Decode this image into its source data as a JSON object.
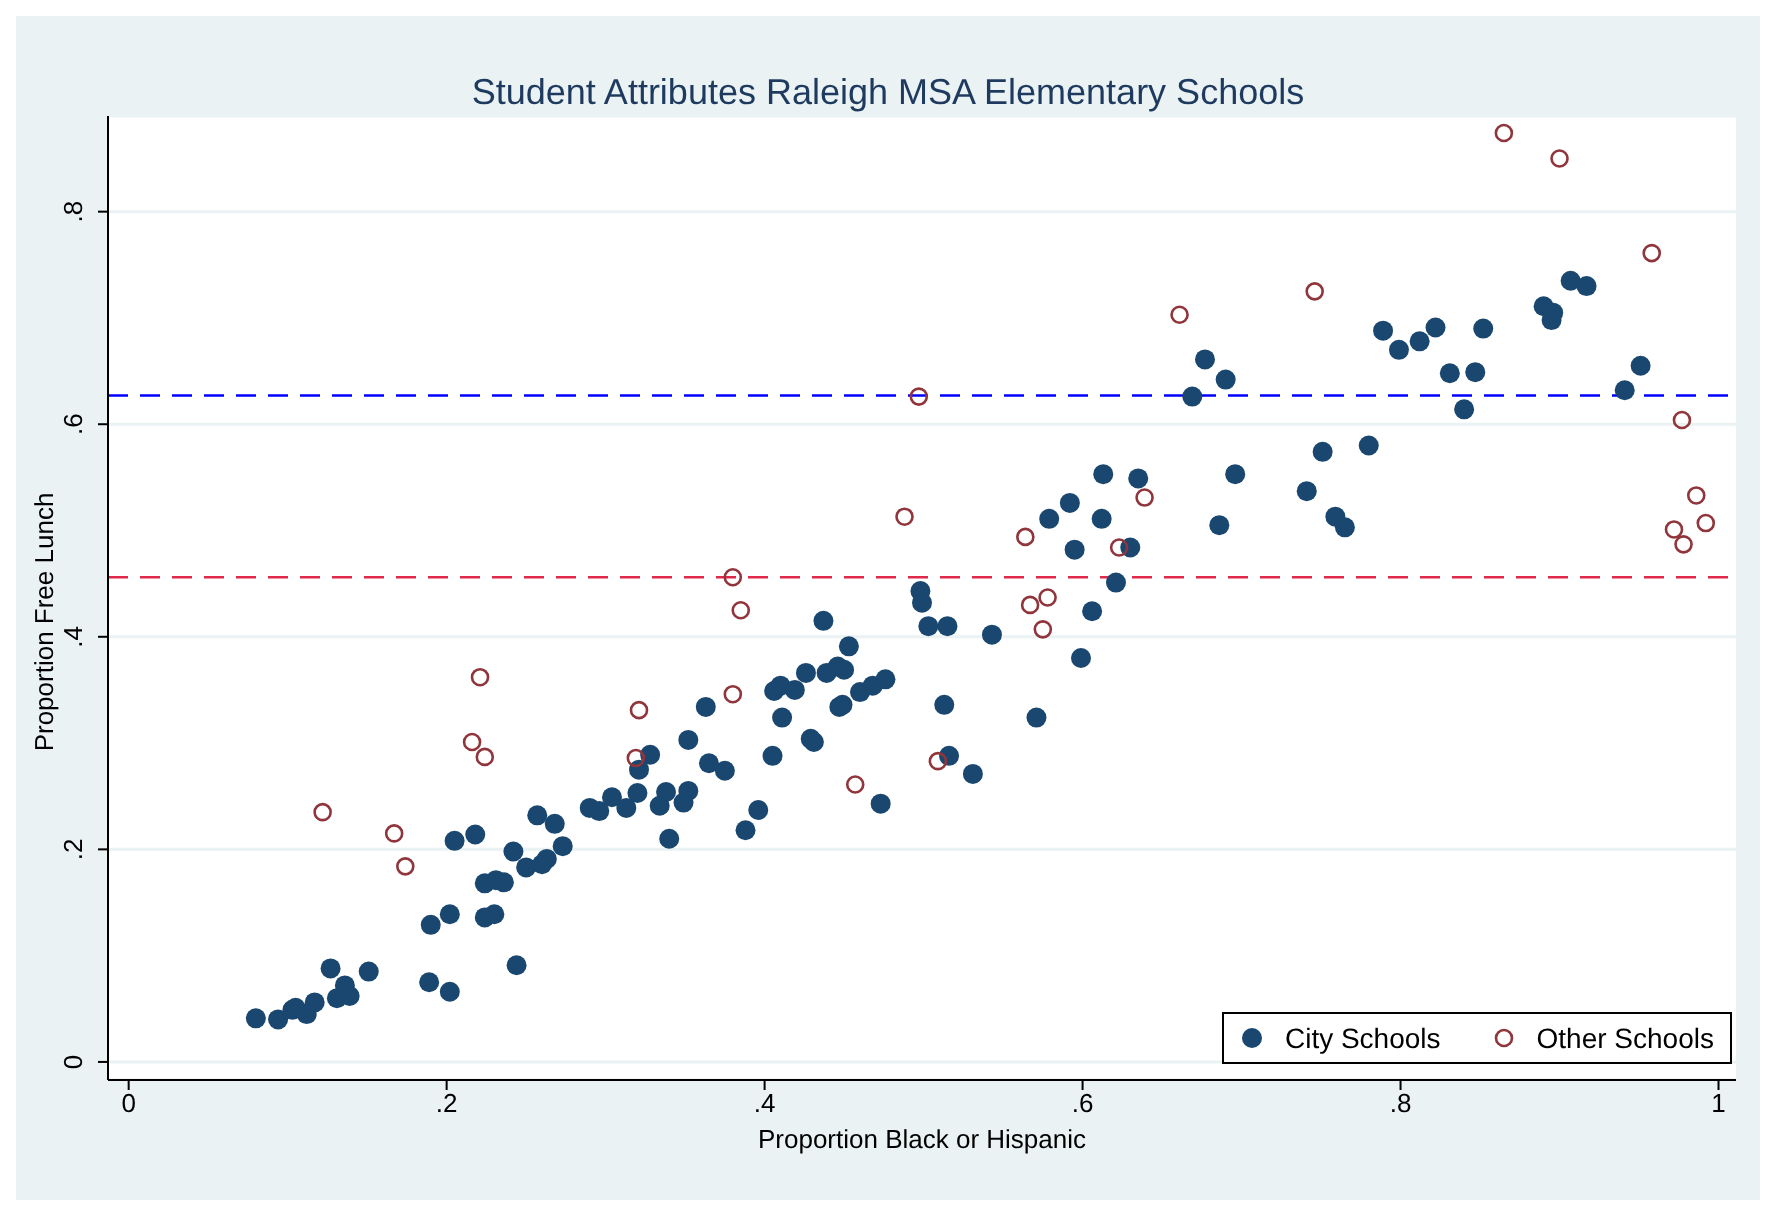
{
  "chart_data": {
    "type": "scatter",
    "title": "Student Attributes Raleigh MSA Elementary Schools",
    "xlabel": "Proportion Black or Hispanic",
    "ylabel": "Proportion Free Lunch",
    "xlim": [
      -0.013,
      1.011
    ],
    "ylim": [
      -0.017,
      0.89
    ],
    "xticks": [
      0,
      {
        "value": 0.2,
        "label": ".2"
      },
      {
        "value": 0.4,
        "label": ".4"
      },
      {
        "value": 0.6,
        "label": ".6"
      },
      {
        "value": 0.8,
        "label": ".8"
      },
      1
    ],
    "yticks": [
      0,
      {
        "value": 0.2,
        "label": ".2"
      },
      {
        "value": 0.4,
        "label": ".4"
      },
      {
        "value": 0.6,
        "label": ".6"
      },
      {
        "value": 0.8,
        "label": ".8"
      }
    ],
    "grid": "y",
    "legend": "bottom right",
    "marker": "circle",
    "ref_lines": [
      {
        "axis": "y",
        "value": 0.627,
        "color": "#0000ff",
        "line_style": "dashed"
      },
      {
        "axis": "y",
        "value": 0.456,
        "color": "#e0284a",
        "line_style": "dashed"
      }
    ],
    "series": [
      {
        "name": "City Schools",
        "color": "#1a476f",
        "x": [
          0.08,
          0.094,
          0.103,
          0.105,
          0.112,
          0.117,
          0.127,
          0.136,
          0.131,
          0.139,
          0.151,
          0.189,
          0.202,
          0.19,
          0.202,
          0.205,
          0.218,
          0.224,
          0.23,
          0.224,
          0.231,
          0.236,
          0.244,
          0.242,
          0.25,
          0.257,
          0.268,
          0.26,
          0.263,
          0.273,
          0.29,
          0.296,
          0.304,
          0.313,
          0.32,
          0.321,
          0.328,
          0.334,
          0.338,
          0.34,
          0.349,
          0.352,
          0.352,
          0.363,
          0.365,
          0.375,
          0.388,
          0.396,
          0.405,
          0.406,
          0.41,
          0.411,
          0.419,
          0.426,
          0.429,
          0.431,
          0.437,
          0.439,
          0.446,
          0.45,
          0.453,
          0.447,
          0.449,
          0.46,
          0.468,
          0.476,
          0.473,
          0.498,
          0.499,
          0.503,
          0.515,
          0.543,
          0.513,
          0.516,
          0.531,
          0.571,
          0.599,
          0.606,
          0.621,
          0.595,
          0.63,
          0.579,
          0.612,
          0.592,
          0.613,
          0.635,
          0.669,
          0.677,
          0.69,
          0.686,
          0.696,
          0.741,
          0.751,
          0.78,
          0.759,
          0.765,
          0.789,
          0.799,
          0.812,
          0.822,
          0.831,
          0.847,
          0.84,
          0.852,
          0.89,
          0.896,
          0.895,
          0.907,
          0.917,
          0.941,
          0.951
        ],
        "values": [
          0.041,
          0.04,
          0.049,
          0.051,
          0.045,
          0.056,
          0.088,
          0.072,
          0.06,
          0.062,
          0.085,
          0.075,
          0.066,
          0.129,
          0.139,
          0.208,
          0.214,
          0.136,
          0.139,
          0.168,
          0.171,
          0.169,
          0.091,
          0.198,
          0.183,
          0.232,
          0.224,
          0.186,
          0.191,
          0.203,
          0.239,
          0.236,
          0.249,
          0.239,
          0.253,
          0.275,
          0.289,
          0.241,
          0.254,
          0.21,
          0.244,
          0.255,
          0.303,
          0.334,
          0.281,
          0.274,
          0.218,
          0.237,
          0.288,
          0.349,
          0.354,
          0.324,
          0.35,
          0.366,
          0.304,
          0.301,
          0.415,
          0.366,
          0.372,
          0.369,
          0.391,
          0.334,
          0.336,
          0.348,
          0.354,
          0.36,
          0.243,
          0.443,
          0.432,
          0.41,
          0.41,
          0.402,
          0.336,
          0.288,
          0.271,
          0.324,
          0.38,
          0.424,
          0.451,
          0.482,
          0.484,
          0.511,
          0.511,
          0.526,
          0.553,
          0.549,
          0.626,
          0.661,
          0.642,
          0.505,
          0.553,
          0.537,
          0.574,
          0.58,
          0.513,
          0.503,
          0.688,
          0.67,
          0.678,
          0.691,
          0.648,
          0.649,
          0.614,
          0.69,
          0.711,
          0.705,
          0.698,
          0.735,
          0.73,
          0.632,
          0.655
        ]
      },
      {
        "name": "Other Schools",
        "color": "#90353b",
        "x": [
          0.122,
          0.167,
          0.174,
          0.216,
          0.221,
          0.224,
          0.321,
          0.319,
          0.38,
          0.385,
          0.38,
          0.457,
          0.488,
          0.497,
          0.509,
          0.564,
          0.567,
          0.578,
          0.575,
          0.623,
          0.639,
          0.661,
          0.746,
          0.865,
          0.9,
          0.958,
          0.977,
          0.986,
          0.972,
          0.978,
          0.992
        ],
        "values": [
          0.235,
          0.215,
          0.184,
          0.301,
          0.362,
          0.287,
          0.331,
          0.286,
          0.456,
          0.425,
          0.346,
          0.261,
          0.513,
          0.626,
          0.283,
          0.494,
          0.43,
          0.437,
          0.407,
          0.484,
          0.531,
          0.703,
          0.725,
          0.874,
          0.85,
          0.761,
          0.604,
          0.533,
          0.501,
          0.487,
          0.507
        ]
      }
    ]
  }
}
